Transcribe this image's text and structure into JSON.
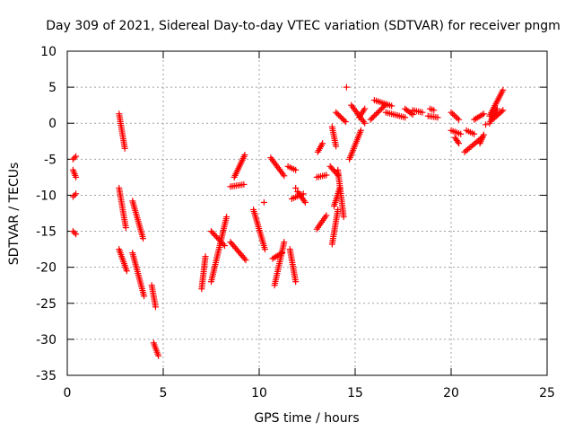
{
  "chart_data": {
    "type": "scatter",
    "title": "Day 309 of 2021, Sidereal Day-to-day VTEC variation (SDTVAR) for receiver pngm",
    "xlabel": "GPS time / hours",
    "ylabel": "SDTVAR / TECUs",
    "xlim": [
      0,
      25
    ],
    "ylim": [
      -35,
      10
    ],
    "xticks": [
      0,
      5,
      10,
      15,
      20,
      25
    ],
    "yticks": [
      10,
      5,
      0,
      -5,
      -10,
      -15,
      -20,
      -25,
      -30,
      -35
    ],
    "grid": true,
    "marker": "+",
    "color": "#ff0000",
    "segments": [
      {
        "x0": 0.3,
        "y0": -5.0,
        "x1": 0.45,
        "y1": -4.6
      },
      {
        "x0": 0.3,
        "y0": -6.5,
        "x1": 0.45,
        "y1": -7.5
      },
      {
        "x0": 0.3,
        "y0": -10.2,
        "x1": 0.45,
        "y1": -9.8
      },
      {
        "x0": 0.3,
        "y0": -15.0,
        "x1": 0.45,
        "y1": -15.4
      },
      {
        "x0": 2.7,
        "y0": 1.3,
        "x1": 3.0,
        "y1": -3.5
      },
      {
        "x0": 2.7,
        "y0": -9.0,
        "x1": 3.05,
        "y1": -14.5
      },
      {
        "x0": 2.7,
        "y0": -17.5,
        "x1": 3.1,
        "y1": -20.5
      },
      {
        "x0": 3.4,
        "y0": -10.8,
        "x1": 3.95,
        "y1": -16.0
      },
      {
        "x0": 3.4,
        "y0": -18.0,
        "x1": 4.0,
        "y1": -24.0
      },
      {
        "x0": 4.4,
        "y0": -22.5,
        "x1": 4.6,
        "y1": -25.5
      },
      {
        "x0": 4.5,
        "y0": -30.5,
        "x1": 4.75,
        "y1": -32.3
      },
      {
        "x0": 7.0,
        "y0": -23.0,
        "x1": 7.2,
        "y1": -18.5
      },
      {
        "x0": 7.5,
        "y0": -22.0,
        "x1": 8.3,
        "y1": -13.0
      },
      {
        "x0": 7.5,
        "y0": -15.0,
        "x1": 8.2,
        "y1": -17.0
      },
      {
        "x0": 8.5,
        "y0": -16.5,
        "x1": 9.3,
        "y1": -19.0
      },
      {
        "x0": 8.5,
        "y0": -8.8,
        "x1": 9.2,
        "y1": -8.5
      },
      {
        "x0": 8.7,
        "y0": -7.5,
        "x1": 9.25,
        "y1": -4.4
      },
      {
        "x0": 9.7,
        "y0": -12.0,
        "x1": 10.3,
        "y1": -17.5
      },
      {
        "x0": 10.8,
        "y0": -22.5,
        "x1": 11.3,
        "y1": -16.5
      },
      {
        "x0": 10.6,
        "y0": -4.8,
        "x1": 11.3,
        "y1": -7.3
      },
      {
        "x0": 10.7,
        "y0": -18.8,
        "x1": 11.2,
        "y1": -18.0
      },
      {
        "x0": 11.6,
        "y0": -17.5,
        "x1": 11.9,
        "y1": -22.0
      },
      {
        "x0": 11.5,
        "y0": -6.0,
        "x1": 11.9,
        "y1": -6.5
      },
      {
        "x0": 11.7,
        "y0": -10.5,
        "x1": 12.3,
        "y1": -9.8
      },
      {
        "x0": 12.0,
        "y0": -9.5,
        "x1": 12.4,
        "y1": -11.0
      },
      {
        "x0": 13.0,
        "y0": -7.5,
        "x1": 13.5,
        "y1": -7.2
      },
      {
        "x0": 13.0,
        "y0": -14.7,
        "x1": 13.5,
        "y1": -12.8
      },
      {
        "x0": 13.05,
        "y0": -4.0,
        "x1": 13.3,
        "y1": -2.8
      },
      {
        "x0": 13.7,
        "y0": -6.0,
        "x1": 14.1,
        "y1": -7.2
      },
      {
        "x0": 13.8,
        "y0": -16.8,
        "x1": 14.1,
        "y1": -12.0
      },
      {
        "x0": 13.9,
        "y0": -11.5,
        "x1": 14.2,
        "y1": -9.0
      },
      {
        "x0": 13.8,
        "y0": -0.5,
        "x1": 14.0,
        "y1": -3.2
      },
      {
        "x0": 14.1,
        "y0": -6.5,
        "x1": 14.4,
        "y1": -13.0
      },
      {
        "x0": 14.0,
        "y0": 1.5,
        "x1": 14.5,
        "y1": 0.2
      },
      {
        "x0": 14.7,
        "y0": -5.0,
        "x1": 15.3,
        "y1": -1.0
      },
      {
        "x0": 14.8,
        "y0": 2.5,
        "x1": 15.5,
        "y1": 0.0
      },
      {
        "x0": 15.2,
        "y0": 0.8,
        "x1": 15.5,
        "y1": 2.0
      },
      {
        "x0": 15.8,
        "y0": 0.5,
        "x1": 16.6,
        "y1": 2.6
      },
      {
        "x0": 16.0,
        "y0": 3.2,
        "x1": 16.9,
        "y1": 2.4
      },
      {
        "x0": 16.6,
        "y0": 1.5,
        "x1": 17.6,
        "y1": 0.8
      },
      {
        "x0": 17.6,
        "y0": 2.0,
        "x1": 18.0,
        "y1": 1.2
      },
      {
        "x0": 18.0,
        "y0": 1.8,
        "x1": 18.5,
        "y1": 1.5
      },
      {
        "x0": 18.8,
        "y0": 1.0,
        "x1": 19.3,
        "y1": 0.8
      },
      {
        "x0": 18.9,
        "y0": 2.0,
        "x1": 19.1,
        "y1": 1.8
      },
      {
        "x0": 20.0,
        "y0": 1.5,
        "x1": 20.4,
        "y1": 0.5
      },
      {
        "x0": 20.0,
        "y0": -1.0,
        "x1": 20.5,
        "y1": -1.5
      },
      {
        "x0": 20.2,
        "y0": -2.0,
        "x1": 20.4,
        "y1": -2.8
      },
      {
        "x0": 20.8,
        "y0": -1.0,
        "x1": 21.2,
        "y1": -1.5
      },
      {
        "x0": 20.7,
        "y0": -4.0,
        "x1": 21.6,
        "y1": -2.0
      },
      {
        "x0": 21.2,
        "y0": 0.5,
        "x1": 21.7,
        "y1": 1.3
      },
      {
        "x0": 21.5,
        "y0": -2.8,
        "x1": 21.7,
        "y1": -1.6
      },
      {
        "x0": 22.0,
        "y0": 1.0,
        "x1": 22.7,
        "y1": 4.6
      },
      {
        "x0": 22.2,
        "y0": 0.6,
        "x1": 22.7,
        "y1": 1.8
      },
      {
        "x0": 22.0,
        "y0": 0.0,
        "x1": 22.4,
        "y1": 2.0
      }
    ],
    "isolated_points": [
      {
        "x": 10.25,
        "y": -11.0
      },
      {
        "x": 14.55,
        "y": 5.0
      },
      {
        "x": 21.8,
        "y": -0.2
      },
      {
        "x": 11.9,
        "y": -9.0
      }
    ]
  }
}
